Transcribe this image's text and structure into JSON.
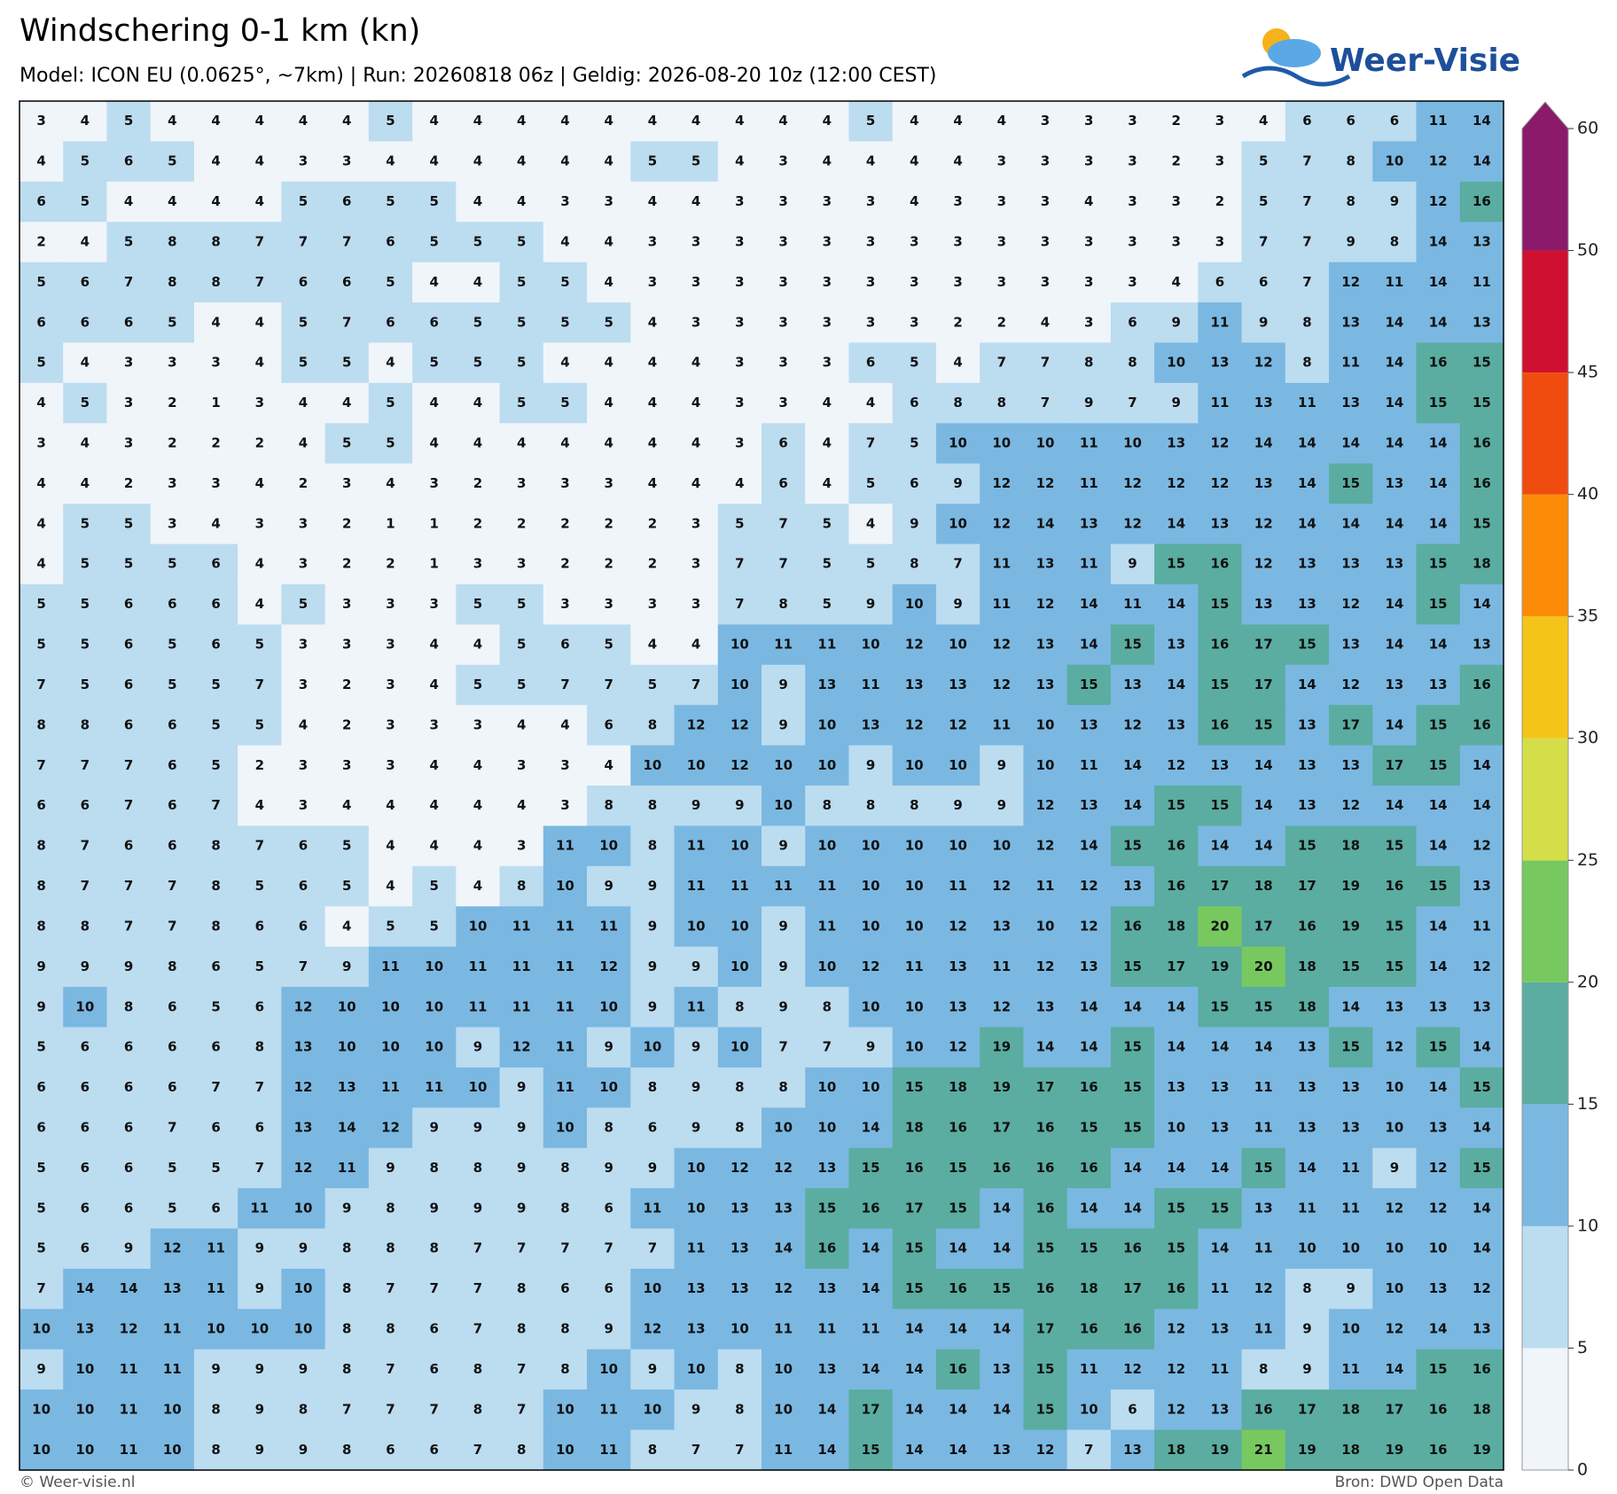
{
  "chart_data": {
    "type": "grid",
    "title": "Windschering 0-1 km (kn)",
    "subtitle": "Model: ICON EU (0.0625°, ~7km)  |  Run: 20260818 06z  |  Geldig: 2026-08-20 10z (12:00 CEST)",
    "brand": "Weer-Visie",
    "credit": "© Weer-visie.nl",
    "source": "Bron: DWD Open Data",
    "colorbar": {
      "ticks": [
        0,
        5,
        10,
        15,
        20,
        25,
        30,
        35,
        40,
        45,
        50,
        60
      ],
      "colors": [
        "#f0f5fa",
        "#bcdcf0",
        "#7ab8e2",
        "#5aada0",
        "#78c860",
        "#d4de48",
        "#f4c418",
        "#fc8c08",
        "#f04c10",
        "#d01030",
        "#8c1a6a"
      ]
    },
    "values": [
      [
        3,
        4,
        5,
        4,
        4,
        4,
        4,
        4,
        5,
        4,
        4,
        4,
        4,
        4,
        4,
        4,
        4,
        4,
        4,
        5,
        4,
        4,
        4,
        3,
        3,
        3,
        2,
        3,
        4,
        6,
        6,
        6,
        11,
        14
      ],
      [
        4,
        5,
        6,
        5,
        4,
        4,
        3,
        3,
        4,
        4,
        4,
        4,
        4,
        4,
        5,
        5,
        4,
        3,
        4,
        4,
        4,
        4,
        3,
        3,
        3,
        3,
        2,
        3,
        5,
        7,
        8,
        10,
        12,
        14
      ],
      [
        6,
        5,
        4,
        4,
        4,
        4,
        5,
        6,
        5,
        5,
        4,
        4,
        3,
        3,
        4,
        4,
        3,
        3,
        3,
        3,
        4,
        3,
        3,
        3,
        4,
        3,
        3,
        2,
        5,
        7,
        8,
        9,
        12,
        16
      ],
      [
        2,
        4,
        5,
        8,
        8,
        7,
        7,
        7,
        6,
        5,
        5,
        5,
        4,
        4,
        3,
        3,
        3,
        3,
        3,
        3,
        3,
        3,
        3,
        3,
        3,
        3,
        3,
        3,
        7,
        7,
        9,
        8,
        14,
        13
      ],
      [
        5,
        6,
        7,
        8,
        8,
        7,
        6,
        6,
        5,
        4,
        4,
        5,
        5,
        4,
        3,
        3,
        3,
        3,
        3,
        3,
        3,
        3,
        3,
        3,
        3,
        3,
        4,
        6,
        6,
        7,
        12,
        11,
        14,
        11
      ],
      [
        6,
        6,
        6,
        5,
        4,
        4,
        5,
        7,
        6,
        6,
        5,
        5,
        5,
        5,
        4,
        3,
        3,
        3,
        3,
        3,
        3,
        2,
        2,
        4,
        3,
        6,
        9,
        11,
        9,
        8,
        13,
        14,
        14,
        13
      ],
      [
        5,
        4,
        3,
        3,
        3,
        4,
        5,
        5,
        4,
        5,
        5,
        5,
        4,
        4,
        4,
        4,
        3,
        3,
        3,
        6,
        5,
        4,
        7,
        7,
        8,
        8,
        10,
        13,
        12,
        8,
        11,
        14,
        16,
        15
      ],
      [
        4,
        5,
        3,
        2,
        1,
        3,
        4,
        4,
        5,
        4,
        4,
        5,
        5,
        4,
        4,
        4,
        3,
        3,
        4,
        4,
        6,
        8,
        8,
        7,
        9,
        7,
        9,
        11,
        13,
        11,
        13,
        14,
        15,
        15
      ],
      [
        3,
        4,
        3,
        2,
        2,
        2,
        4,
        5,
        5,
        4,
        4,
        4,
        4,
        4,
        4,
        4,
        3,
        6,
        4,
        7,
        5,
        10,
        10,
        10,
        11,
        10,
        13,
        12,
        14,
        14,
        14,
        14,
        14,
        16
      ],
      [
        4,
        4,
        2,
        3,
        3,
        4,
        2,
        3,
        4,
        3,
        2,
        3,
        3,
        3,
        4,
        4,
        4,
        6,
        4,
        5,
        6,
        9,
        12,
        12,
        11,
        12,
        12,
        12,
        13,
        14,
        15,
        13,
        14,
        16
      ],
      [
        4,
        5,
        5,
        3,
        4,
        3,
        3,
        2,
        1,
        1,
        2,
        2,
        2,
        2,
        2,
        3,
        5,
        7,
        5,
        4,
        9,
        10,
        12,
        14,
        13,
        12,
        14,
        13,
        12,
        14,
        14,
        14,
        14,
        15
      ],
      [
        4,
        5,
        5,
        5,
        6,
        4,
        3,
        2,
        2,
        1,
        3,
        3,
        2,
        2,
        2,
        3,
        7,
        7,
        5,
        5,
        8,
        7,
        11,
        13,
        11,
        9,
        15,
        16,
        12,
        13,
        13,
        13,
        15,
        18
      ],
      [
        5,
        5,
        6,
        6,
        6,
        4,
        5,
        3,
        3,
        3,
        5,
        5,
        3,
        3,
        3,
        3,
        7,
        8,
        5,
        9,
        10,
        9,
        11,
        12,
        14,
        11,
        14,
        15,
        13,
        13,
        12,
        14,
        15,
        14
      ],
      [
        5,
        5,
        6,
        5,
        6,
        5,
        3,
        3,
        3,
        4,
        4,
        5,
        6,
        5,
        4,
        4,
        10,
        11,
        11,
        10,
        12,
        10,
        12,
        13,
        14,
        15,
        13,
        16,
        17,
        15,
        13,
        14,
        14,
        13
      ],
      [
        7,
        5,
        6,
        5,
        5,
        7,
        3,
        2,
        3,
        4,
        5,
        5,
        7,
        7,
        5,
        7,
        10,
        9,
        13,
        11,
        13,
        13,
        12,
        13,
        15,
        13,
        14,
        15,
        17,
        14,
        12,
        13,
        13,
        16
      ],
      [
        8,
        8,
        6,
        6,
        5,
        5,
        4,
        2,
        3,
        3,
        3,
        4,
        4,
        6,
        8,
        12,
        12,
        9,
        10,
        13,
        12,
        12,
        11,
        10,
        13,
        12,
        13,
        16,
        15,
        13,
        17,
        14,
        15,
        16
      ],
      [
        7,
        7,
        7,
        6,
        5,
        2,
        3,
        3,
        3,
        4,
        4,
        3,
        3,
        4,
        10,
        10,
        12,
        10,
        10,
        9,
        10,
        10,
        9,
        10,
        11,
        14,
        12,
        13,
        14,
        13,
        13,
        17,
        15,
        14
      ],
      [
        6,
        6,
        7,
        6,
        7,
        4,
        3,
        4,
        4,
        4,
        4,
        4,
        3,
        8,
        8,
        9,
        9,
        10,
        8,
        8,
        8,
        9,
        9,
        12,
        13,
        14,
        15,
        15,
        14,
        13,
        12,
        14,
        14,
        14
      ],
      [
        8,
        7,
        6,
        6,
        8,
        7,
        6,
        5,
        4,
        4,
        4,
        3,
        11,
        10,
        8,
        11,
        10,
        9,
        10,
        10,
        10,
        10,
        10,
        12,
        14,
        15,
        16,
        14,
        14,
        15,
        18,
        15,
        14,
        12
      ],
      [
        8,
        7,
        7,
        7,
        8,
        5,
        6,
        5,
        4,
        5,
        4,
        8,
        10,
        9,
        9,
        11,
        11,
        11,
        11,
        10,
        10,
        11,
        12,
        11,
        12,
        13,
        16,
        17,
        18,
        17,
        19,
        16,
        15,
        13
      ],
      [
        8,
        8,
        7,
        7,
        8,
        6,
        6,
        4,
        5,
        5,
        10,
        11,
        11,
        11,
        9,
        10,
        10,
        9,
        11,
        10,
        10,
        12,
        13,
        10,
        12,
        16,
        18,
        20,
        17,
        16,
        19,
        15,
        14,
        11
      ],
      [
        9,
        9,
        9,
        8,
        6,
        5,
        7,
        9,
        11,
        10,
        11,
        11,
        11,
        12,
        9,
        9,
        10,
        9,
        10,
        12,
        11,
        13,
        11,
        12,
        13,
        15,
        17,
        19,
        20,
        18,
        15,
        15,
        14,
        12
      ],
      [
        9,
        10,
        8,
        6,
        5,
        6,
        12,
        10,
        10,
        10,
        11,
        11,
        11,
        10,
        9,
        11,
        8,
        9,
        8,
        10,
        10,
        13,
        12,
        13,
        14,
        14,
        14,
        15,
        15,
        18,
        14,
        13,
        13,
        13
      ],
      [
        5,
        6,
        6,
        6,
        6,
        8,
        13,
        10,
        10,
        10,
        9,
        12,
        11,
        9,
        10,
        9,
        10,
        7,
        7,
        9,
        10,
        12,
        19,
        14,
        14,
        15,
        14,
        14,
        14,
        13,
        15,
        12,
        15,
        14
      ],
      [
        6,
        6,
        6,
        6,
        7,
        7,
        12,
        13,
        11,
        11,
        10,
        9,
        11,
        10,
        8,
        9,
        8,
        8,
        10,
        10,
        15,
        18,
        19,
        17,
        16,
        15,
        13,
        13,
        11,
        13,
        13,
        10,
        14,
        15
      ],
      [
        6,
        6,
        6,
        7,
        6,
        6,
        13,
        14,
        12,
        9,
        9,
        9,
        10,
        8,
        6,
        9,
        8,
        10,
        10,
        14,
        18,
        16,
        17,
        16,
        15,
        15,
        10,
        13,
        11,
        13,
        13,
        10,
        13,
        14
      ],
      [
        5,
        6,
        6,
        5,
        5,
        7,
        12,
        11,
        9,
        8,
        8,
        9,
        8,
        9,
        9,
        10,
        12,
        12,
        13,
        15,
        16,
        15,
        16,
        16,
        16,
        14,
        14,
        14,
        15,
        14,
        11,
        9,
        12,
        15
      ],
      [
        5,
        6,
        6,
        5,
        6,
        11,
        10,
        9,
        8,
        9,
        9,
        9,
        8,
        6,
        11,
        10,
        13,
        13,
        15,
        16,
        17,
        15,
        14,
        16,
        14,
        14,
        15,
        15,
        13,
        11,
        11,
        12,
        12,
        14
      ],
      [
        5,
        6,
        9,
        12,
        11,
        9,
        9,
        8,
        8,
        8,
        7,
        7,
        7,
        7,
        7,
        11,
        13,
        14,
        16,
        14,
        15,
        14,
        14,
        15,
        15,
        16,
        15,
        14,
        11,
        10,
        10,
        10,
        10,
        14
      ],
      [
        7,
        14,
        14,
        13,
        11,
        9,
        10,
        8,
        7,
        7,
        7,
        8,
        6,
        6,
        10,
        13,
        13,
        12,
        13,
        14,
        15,
        16,
        15,
        16,
        18,
        17,
        16,
        11,
        12,
        8,
        9,
        10,
        13,
        12
      ],
      [
        10,
        13,
        12,
        11,
        10,
        10,
        10,
        8,
        8,
        6,
        7,
        8,
        8,
        9,
        12,
        13,
        10,
        11,
        11,
        11,
        14,
        14,
        14,
        17,
        16,
        16,
        12,
        13,
        11,
        9,
        10,
        12,
        14,
        13
      ],
      [
        9,
        10,
        11,
        11,
        9,
        9,
        9,
        8,
        7,
        6,
        8,
        7,
        8,
        10,
        9,
        10,
        8,
        10,
        13,
        14,
        14,
        16,
        13,
        15,
        11,
        12,
        12,
        11,
        8,
        9,
        11,
        14,
        15,
        16
      ],
      [
        10,
        10,
        11,
        10,
        8,
        9,
        8,
        7,
        7,
        7,
        8,
        7,
        10,
        11,
        10,
        9,
        8,
        10,
        14,
        17,
        14,
        14,
        14,
        15,
        10,
        6,
        12,
        13,
        16,
        17,
        18,
        17,
        16,
        18
      ],
      [
        10,
        10,
        11,
        10,
        8,
        9,
        9,
        8,
        6,
        6,
        7,
        8,
        10,
        11,
        8,
        7,
        7,
        11,
        14,
        15,
        14,
        14,
        13,
        12,
        7,
        13,
        18,
        19,
        21,
        19,
        18,
        19,
        16,
        19
      ]
    ]
  }
}
